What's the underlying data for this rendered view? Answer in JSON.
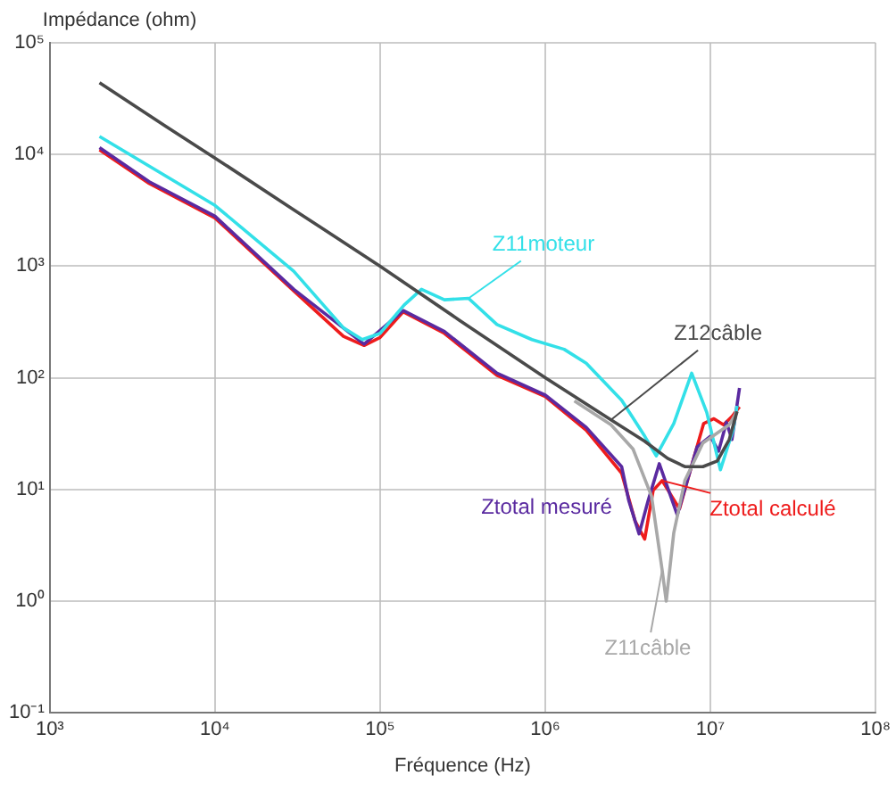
{
  "chart_data": {
    "type": "line",
    "ylabel": "Impédance (ohm)",
    "xlabel": "Fréquence (Hz)",
    "log": "xy",
    "xlim": [
      1000,
      100000000
    ],
    "ylim": [
      0.1,
      100000
    ],
    "xticks": [
      {
        "value": 1000,
        "label": "10³"
      },
      {
        "value": 10000,
        "label": "10⁴"
      },
      {
        "value": 100000,
        "label": "10⁵"
      },
      {
        "value": 1000000,
        "label": "10⁶"
      },
      {
        "value": 10000000,
        "label": "10⁷"
      },
      {
        "value": 100000000,
        "label": "10⁸"
      }
    ],
    "yticks": [
      {
        "value": 0.1,
        "label": "10⁻¹"
      },
      {
        "value": 1,
        "label": "10⁰"
      },
      {
        "value": 10,
        "label": "10¹"
      },
      {
        "value": 100,
        "label": "10²"
      },
      {
        "value": 1000,
        "label": "10³"
      },
      {
        "value": 10000,
        "label": "10⁴"
      },
      {
        "value": 100000,
        "label": "10⁵"
      }
    ],
    "grid": true,
    "legend": false,
    "marker": "none",
    "line_style": "solid",
    "series": [
      {
        "name": "Z12câble",
        "color": "#4a4a4a",
        "x": [
          2000,
          5000,
          10000,
          30000,
          100000,
          300000,
          1000000,
          2500000,
          4000000,
          5500000,
          7000000,
          9000000,
          11000000,
          13000000,
          14500000
        ],
        "values": [
          44000,
          18000,
          9300,
          3200,
          1000,
          330,
          100,
          42,
          27,
          19,
          16,
          16,
          18,
          28,
          50
        ]
      },
      {
        "name": "Z11câble",
        "color": "#a8a8a8",
        "x": [
          1500000,
          2500000,
          3400000,
          4400000,
          5100000,
          5400000,
          6000000,
          7000000,
          9000000,
          11000000,
          13000000,
          14500000
        ],
        "values": [
          62,
          38,
          23,
          8.7,
          1.9,
          1,
          4.1,
          12,
          26,
          32,
          38,
          50
        ]
      },
      {
        "name": "Z11moteur",
        "color": "#33e0e8",
        "x": [
          2000,
          10000,
          30000,
          60000,
          78000,
          100000,
          140000,
          178000,
          245000,
          343000,
          510000,
          830000,
          1300000,
          1770000,
          2900000,
          4000000,
          4700000,
          6000000,
          7700000,
          9500000,
          11500000,
          13700000,
          14500000
        ],
        "values": [
          14500,
          3500,
          900,
          280,
          220,
          250,
          450,
          620,
          500,
          515,
          300,
          220,
          180,
          135,
          63,
          30,
          20,
          39,
          110,
          49,
          15,
          34,
          56
        ]
      },
      {
        "name": "Ztotal mesuré",
        "color": "#5a2aa0",
        "x": [
          2000,
          4000,
          10000,
          30000,
          80000,
          138000,
          245000,
          510000,
          1000000,
          1770000,
          2900000,
          3200000,
          3700000,
          4200000,
          4900000,
          6300000,
          8300000,
          10000000,
          11200000,
          12500000,
          13500000,
          15000000
        ],
        "values": [
          11500,
          5700,
          2800,
          620,
          200,
          400,
          260,
          110,
          70,
          36,
          16,
          8,
          4,
          8,
          17,
          5.9,
          24,
          30,
          22,
          40,
          28,
          81
        ]
      },
      {
        "name": "Ztotal calculé",
        "color": "#ee1c1c",
        "x": [
          2000,
          4000,
          10000,
          30000,
          60000,
          80000,
          100000,
          138000,
          245000,
          510000,
          1000000,
          1770000,
          2900000,
          3500000,
          4000000,
          4500000,
          5100000,
          6500000,
          8000000,
          9100000,
          10500000,
          12000000,
          13500000,
          15000000
        ],
        "values": [
          11000,
          5500,
          2700,
          600,
          235,
          195,
          230,
          390,
          250,
          105,
          68,
          34,
          14,
          5.2,
          3.6,
          9.8,
          12,
          6.7,
          20,
          39,
          43,
          38,
          45,
          55
        ]
      }
    ]
  }
}
